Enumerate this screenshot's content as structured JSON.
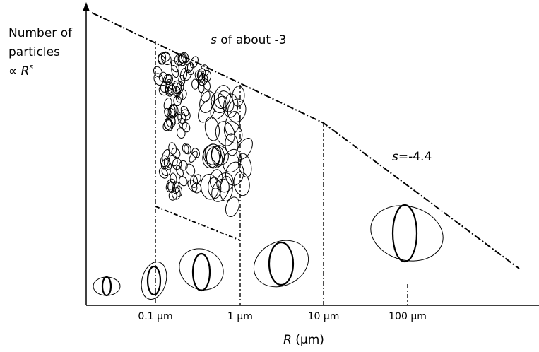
{
  "y_axis": {
    "line1": "Number of",
    "line2": "particles",
    "prefix": "∝ ",
    "symbol": "R",
    "exponent": "s"
  },
  "x_axis": {
    "symbol": "R",
    "unit": " (μm)",
    "ticks": [
      "0.1 μm",
      "1 μm",
      "10 μm",
      "100 μm"
    ]
  },
  "annotations": [
    {
      "symbol": "s",
      "text": " of about -3"
    },
    {
      "symbol": "s",
      "text": "=-4.4"
    }
  ]
}
